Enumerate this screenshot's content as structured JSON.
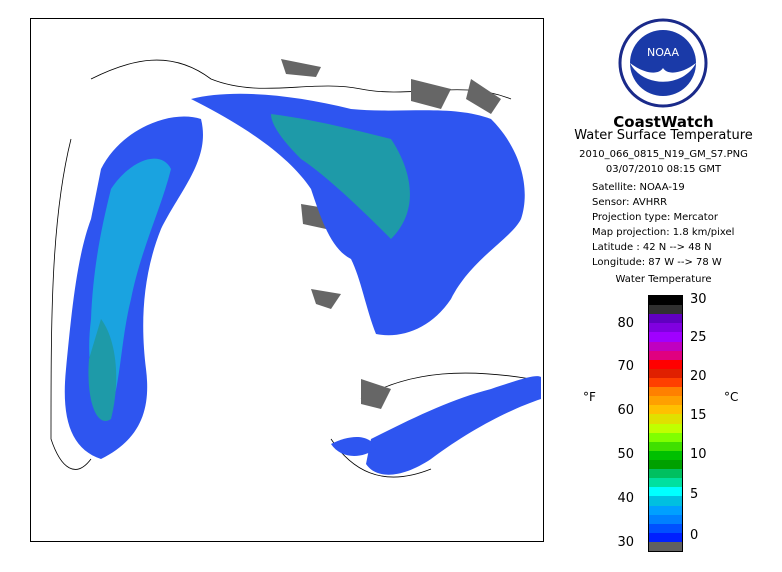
{
  "header": {
    "brand": "CoastWatch",
    "product": "Water Surface Temperature",
    "filename": "2010_066_0815_N19_GM_S7.PNG",
    "datetime": "03/07/2010   08:15 GMT"
  },
  "metadata": [
    {
      "label": "Satellite: NOAA-19"
    },
    {
      "label": "Sensor: AVHRR"
    },
    {
      "label": "Projection type:  Mercator"
    },
    {
      "label": "Map projection: 1.8 km/pixel"
    },
    {
      "label": "Latitude : 42 N --> 48 N"
    },
    {
      "label": "Longitude: 87 W --> 78 W"
    }
  ],
  "legend": {
    "title": "Water Temperature",
    "unit_f": "°F",
    "unit_c": "°C",
    "fahrenheit_ticks": [
      "80",
      "70",
      "60",
      "50",
      "40",
      "30"
    ],
    "celsius_ticks": [
      "30",
      "25",
      "20",
      "15",
      "10",
      "5",
      "0"
    ],
    "colors": [
      "#000000",
      "#303030",
      "#6000c0",
      "#8000e0",
      "#a000ff",
      "#c000c0",
      "#e00080",
      "#ff0000",
      "#e02000",
      "#ff4000",
      "#ff8000",
      "#ffa000",
      "#ffc000",
      "#e0e000",
      "#c0ff00",
      "#80ff00",
      "#40e000",
      "#00c000",
      "#00a000",
      "#00c060",
      "#00e0a0",
      "#00ffff",
      "#00c0e0",
      "#00a0ff",
      "#0080ff",
      "#0050ff",
      "#0020ff",
      "#606060"
    ]
  },
  "logo": {
    "text": "NOAA",
    "icon": "noaa-logo-icon"
  }
}
